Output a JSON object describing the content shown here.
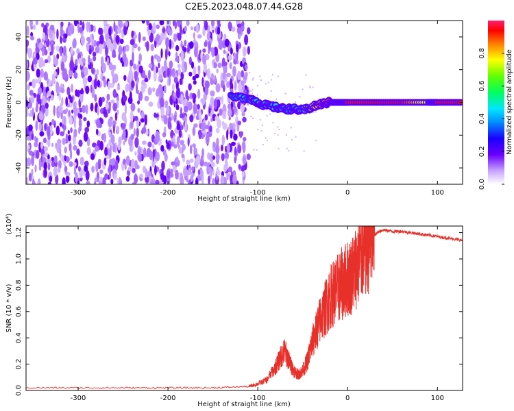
{
  "title": "C2E5.2023.048.07.44.G28",
  "chart_data": [
    {
      "type": "heatmap",
      "title": "C2E5.2023.048.07.44.G28",
      "xlabel": "Height of straight line (km)",
      "ylabel": "Frequency (Hz)",
      "xlim": [
        -358,
        128
      ],
      "ylim": [
        -50,
        50
      ],
      "xticks": [
        -300,
        -200,
        -100,
        0,
        100
      ],
      "yticks": [
        -40,
        -20,
        0,
        20,
        40
      ],
      "colorbar": {
        "label": "Normalized spectral amplitude",
        "range": [
          0.0,
          1.0
        ],
        "ticks": [
          0.0,
          0.2,
          0.4,
          0.6,
          0.8
        ],
        "colormap": [
          "#ffffff",
          "#6a00ff",
          "#0000ff",
          "#00e5ff",
          "#00ff00",
          "#ffff00",
          "#ff0000",
          "#ff1f6f"
        ]
      },
      "ridge": {
        "x": [
          -130,
          -110,
          -100,
          -90,
          -80,
          -70,
          -60,
          -50,
          -40,
          -30,
          -20,
          -10,
          0,
          30,
          60,
          90,
          100,
          128
        ],
        "freq": [
          3,
          3,
          0,
          -2,
          -3,
          -4,
          -4,
          -5,
          -3,
          -1,
          0,
          0,
          0,
          0,
          0,
          0,
          0,
          0
        ],
        "amplitude": [
          0.35,
          0.45,
          0.45,
          0.45,
          0.45,
          0.4,
          0.4,
          0.45,
          0.75,
          0.85,
          0.9,
          0.95,
          0.95,
          0.95,
          0.95,
          0.7,
          0.95,
          0.95
        ]
      },
      "noise_region_x": [
        -358,
        -110
      ]
    },
    {
      "type": "line",
      "xlabel": "Height of straight line (km)",
      "ylabel": "SNR (10 * v/v)",
      "y_multiplier": "(x10⁴)",
      "xlim": [
        -358,
        128
      ],
      "ylim": [
        0.0,
        1.25
      ],
      "xticks": [
        -300,
        -200,
        -100,
        0,
        100
      ],
      "yticks": [
        0.0,
        0.2,
        0.4,
        0.6,
        0.8,
        1.0,
        1.2
      ],
      "color": "#e8302a",
      "series": [
        {
          "x": [
            -358,
            -300,
            -250,
            -200,
            -150,
            -110,
            -100,
            -90,
            -80,
            -75,
            -70,
            -65,
            -60,
            -55,
            -50,
            -45,
            -40,
            -35,
            -30,
            -25,
            -20,
            -15,
            -10,
            -5,
            0,
            5,
            10,
            15,
            20,
            25,
            30,
            35,
            40,
            50,
            60,
            70,
            80,
            90,
            100,
            110,
            120,
            128
          ],
          "values": [
            0.02,
            0.02,
            0.02,
            0.02,
            0.02,
            0.03,
            0.05,
            0.08,
            0.18,
            0.25,
            0.3,
            0.22,
            0.15,
            0.12,
            0.15,
            0.22,
            0.35,
            0.45,
            0.55,
            0.62,
            0.7,
            0.75,
            0.78,
            0.82,
            0.85,
            0.88,
            0.95,
            1.02,
            1.08,
            1.14,
            1.18,
            1.21,
            1.22,
            1.21,
            1.21,
            1.2,
            1.19,
            1.18,
            1.17,
            1.16,
            1.15,
            1.14
          ]
        }
      ]
    }
  ]
}
